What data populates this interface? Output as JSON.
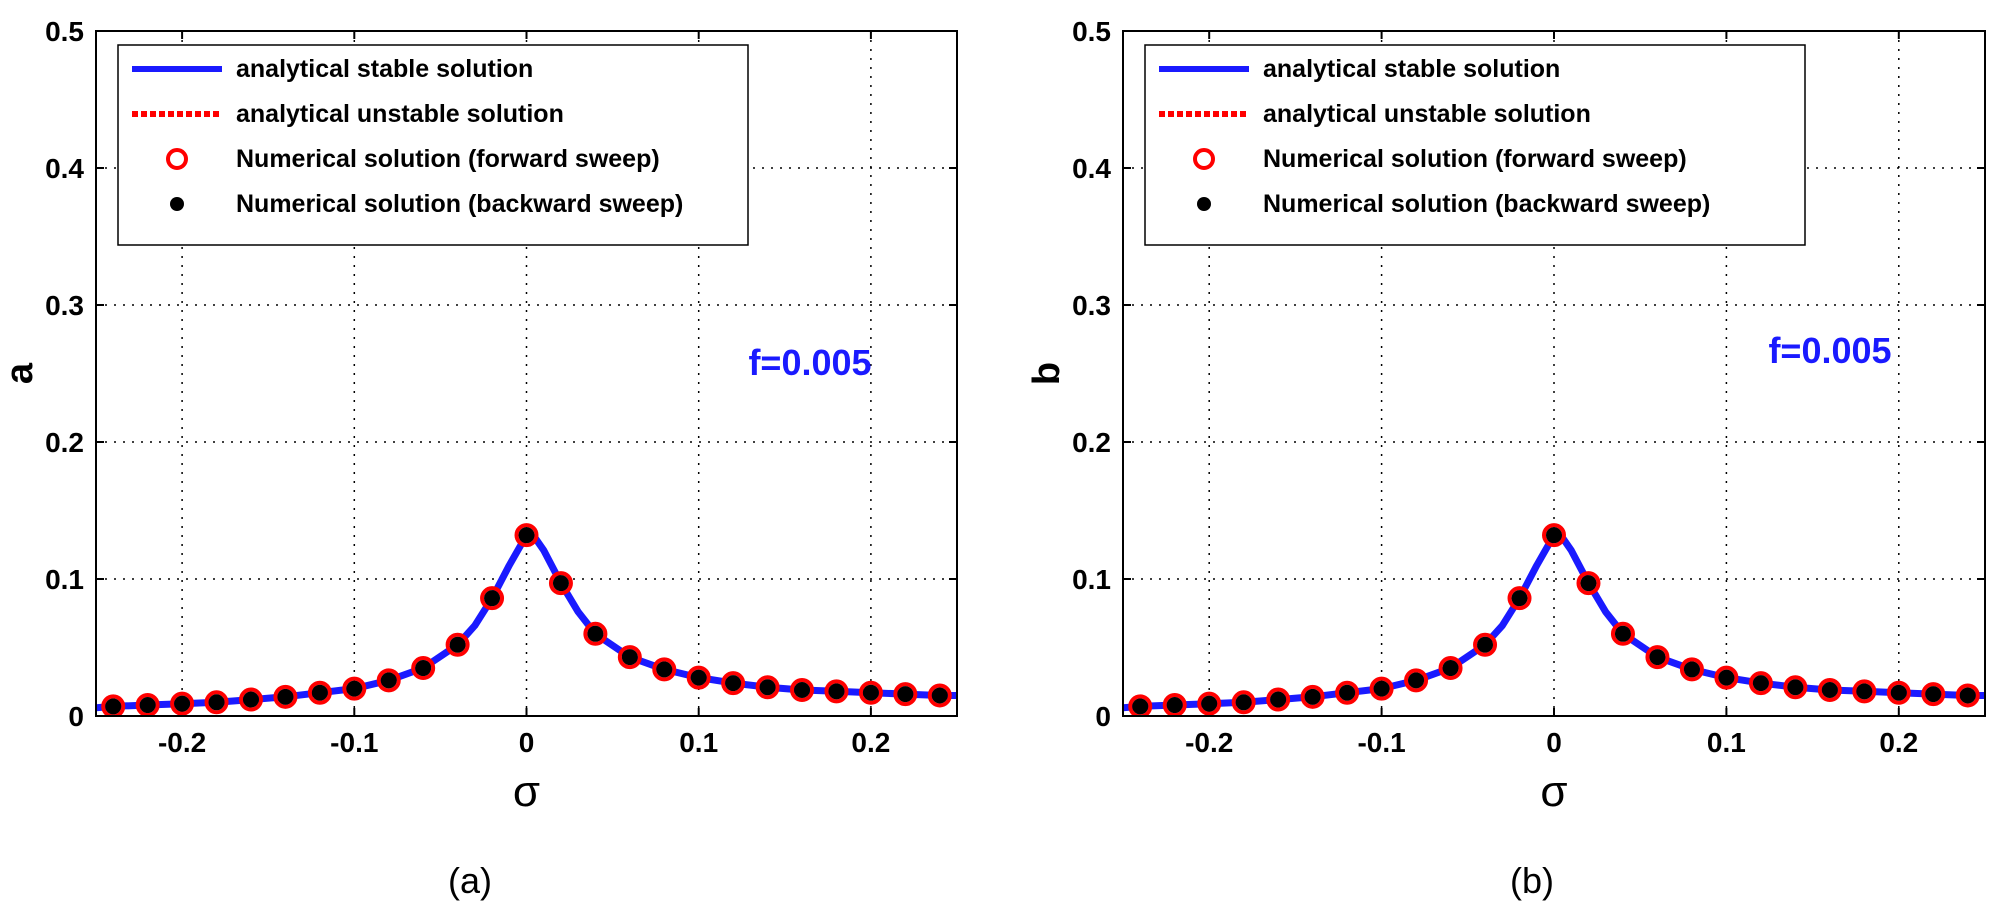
{
  "chart_data": [
    {
      "type": "line",
      "panel_label": "(a)",
      "panel_letter": "a",
      "xlabel": "σ",
      "ylabel": "a",
      "xlim": [
        -0.25,
        0.25
      ],
      "ylim": [
        0,
        0.5
      ],
      "xticks": [
        -0.2,
        -0.1,
        0,
        0.1,
        0.2
      ],
      "xtick_labels": [
        "-0.2",
        "-0.1",
        "0",
        "0.1",
        "0.2"
      ],
      "yticks": [
        0,
        0.1,
        0.2,
        0.3,
        0.4,
        0.5
      ],
      "ytick_labels": [
        "0",
        "0.1",
        "0.2",
        "0.3",
        "0.4",
        "0.5"
      ],
      "grid": true,
      "legend_position": "top-left",
      "annotation": "f=0.005",
      "legend": [
        "analytical stable solution",
        "analytical unstable solution",
        "Numerical solution (forward sweep)",
        "Numerical solution (backward sweep)"
      ],
      "series": [
        {
          "name": "analytical stable solution",
          "style": "line",
          "color": "#1a1aff",
          "x": [
            -0.25,
            -0.24,
            -0.22,
            -0.2,
            -0.18,
            -0.16,
            -0.14,
            -0.12,
            -0.1,
            -0.08,
            -0.06,
            -0.04,
            -0.03,
            -0.02,
            -0.01,
            0,
            0.005,
            0.01,
            0.02,
            0.03,
            0.04,
            0.06,
            0.08,
            0.1,
            0.12,
            0.14,
            0.16,
            0.18,
            0.2,
            0.22,
            0.24,
            0.25
          ],
          "y": [
            0.006,
            0.007,
            0.008,
            0.009,
            0.01,
            0.012,
            0.014,
            0.017,
            0.02,
            0.026,
            0.035,
            0.052,
            0.066,
            0.086,
            0.11,
            0.132,
            0.13,
            0.121,
            0.097,
            0.076,
            0.06,
            0.043,
            0.034,
            0.028,
            0.024,
            0.021,
            0.019,
            0.018,
            0.017,
            0.016,
            0.015,
            0.015
          ]
        },
        {
          "name": "Numerical solution (forward sweep)",
          "style": "marker-open-circle",
          "color": "#ff0000",
          "x": [
            -0.24,
            -0.22,
            -0.2,
            -0.18,
            -0.16,
            -0.14,
            -0.12,
            -0.1,
            -0.08,
            -0.06,
            -0.04,
            -0.02,
            0,
            0.02,
            0.04,
            0.06,
            0.08,
            0.1,
            0.12,
            0.14,
            0.16,
            0.18,
            0.2,
            0.22,
            0.24
          ],
          "y": [
            0.007,
            0.008,
            0.009,
            0.01,
            0.012,
            0.014,
            0.017,
            0.02,
            0.026,
            0.035,
            0.052,
            0.086,
            0.132,
            0.097,
            0.06,
            0.043,
            0.034,
            0.028,
            0.024,
            0.021,
            0.019,
            0.018,
            0.017,
            0.016,
            0.015
          ]
        },
        {
          "name": "Numerical solution (backward sweep)",
          "style": "marker-filled-dot",
          "color": "#000000",
          "x": [
            -0.24,
            -0.22,
            -0.2,
            -0.18,
            -0.16,
            -0.14,
            -0.12,
            -0.1,
            -0.08,
            -0.06,
            -0.04,
            -0.02,
            0,
            0.02,
            0.04,
            0.06,
            0.08,
            0.1,
            0.12,
            0.14,
            0.16,
            0.18,
            0.2,
            0.22,
            0.24
          ],
          "y": [
            0.007,
            0.008,
            0.009,
            0.01,
            0.012,
            0.014,
            0.017,
            0.02,
            0.026,
            0.035,
            0.052,
            0.086,
            0.132,
            0.097,
            0.06,
            0.043,
            0.034,
            0.028,
            0.024,
            0.021,
            0.019,
            0.018,
            0.017,
            0.016,
            0.015
          ]
        }
      ]
    },
    {
      "type": "line",
      "panel_label": "(b)",
      "panel_letter": "b",
      "xlabel": "σ",
      "ylabel": "b",
      "xlim": [
        -0.25,
        0.25
      ],
      "ylim": [
        0,
        0.5
      ],
      "xticks": [
        -0.2,
        -0.1,
        0,
        0.1,
        0.2
      ],
      "xtick_labels": [
        "-0.2",
        "-0.1",
        "0",
        "0.1",
        "0.2"
      ],
      "yticks": [
        0,
        0.1,
        0.2,
        0.3,
        0.4,
        0.5
      ],
      "ytick_labels": [
        "0",
        "0.1",
        "0.2",
        "0.3",
        "0.4",
        "0.5"
      ],
      "grid": true,
      "legend_position": "top-left",
      "annotation": "f=0.005",
      "legend": [
        "analytical stable solution",
        "analytical unstable solution",
        "Numerical solution (forward sweep)",
        "Numerical solution (backward sweep)"
      ],
      "series": [
        {
          "name": "analytical stable solution",
          "style": "line",
          "color": "#1a1aff",
          "x": [
            -0.25,
            -0.24,
            -0.22,
            -0.2,
            -0.18,
            -0.16,
            -0.14,
            -0.12,
            -0.1,
            -0.08,
            -0.06,
            -0.04,
            -0.03,
            -0.02,
            -0.01,
            0,
            0.005,
            0.01,
            0.02,
            0.03,
            0.04,
            0.06,
            0.08,
            0.1,
            0.12,
            0.14,
            0.16,
            0.18,
            0.2,
            0.22,
            0.24,
            0.25
          ],
          "y": [
            0.006,
            0.007,
            0.008,
            0.009,
            0.01,
            0.012,
            0.014,
            0.017,
            0.02,
            0.026,
            0.035,
            0.052,
            0.066,
            0.086,
            0.11,
            0.132,
            0.13,
            0.121,
            0.097,
            0.076,
            0.06,
            0.043,
            0.034,
            0.028,
            0.024,
            0.021,
            0.019,
            0.018,
            0.017,
            0.016,
            0.015,
            0.015
          ]
        },
        {
          "name": "Numerical solution (forward sweep)",
          "style": "marker-open-circle",
          "color": "#ff0000",
          "x": [
            -0.24,
            -0.22,
            -0.2,
            -0.18,
            -0.16,
            -0.14,
            -0.12,
            -0.1,
            -0.08,
            -0.06,
            -0.04,
            -0.02,
            0,
            0.02,
            0.04,
            0.06,
            0.08,
            0.1,
            0.12,
            0.14,
            0.16,
            0.18,
            0.2,
            0.22,
            0.24
          ],
          "y": [
            0.007,
            0.008,
            0.009,
            0.01,
            0.012,
            0.014,
            0.017,
            0.02,
            0.026,
            0.035,
            0.052,
            0.086,
            0.132,
            0.097,
            0.06,
            0.043,
            0.034,
            0.028,
            0.024,
            0.021,
            0.019,
            0.018,
            0.017,
            0.016,
            0.015
          ]
        },
        {
          "name": "Numerical solution (backward sweep)",
          "style": "marker-filled-dot",
          "color": "#000000",
          "x": [
            -0.24,
            -0.22,
            -0.2,
            -0.18,
            -0.16,
            -0.14,
            -0.12,
            -0.1,
            -0.08,
            -0.06,
            -0.04,
            -0.02,
            0,
            0.02,
            0.04,
            0.06,
            0.08,
            0.1,
            0.12,
            0.14,
            0.16,
            0.18,
            0.2,
            0.22,
            0.24
          ],
          "y": [
            0.007,
            0.008,
            0.009,
            0.01,
            0.012,
            0.014,
            0.017,
            0.02,
            0.026,
            0.035,
            0.052,
            0.086,
            0.132,
            0.097,
            0.06,
            0.043,
            0.034,
            0.028,
            0.024,
            0.021,
            0.019,
            0.018,
            0.017,
            0.016,
            0.015
          ]
        }
      ]
    }
  ],
  "colors": {
    "stable_line": "#1a1aff",
    "unstable_line": "#ff0000",
    "forward_marker": "#ff0000",
    "backward_marker": "#000000",
    "annotation": "#1a1aff"
  }
}
